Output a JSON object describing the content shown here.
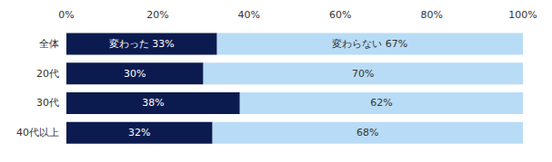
{
  "chart_data": {
    "type": "bar",
    "orientation": "horizontal",
    "stacked": true,
    "data_labels": true,
    "grid": false,
    "categories": [
      "全体",
      "20代",
      "30代",
      "40代以上"
    ],
    "series": [
      {
        "name": "変わった",
        "color": "#0c1b4f",
        "values": [
          33,
          30,
          38,
          32
        ],
        "value_labels": [
          "変わった 33%",
          "30%",
          "38%",
          "32%"
        ]
      },
      {
        "name": "変わらない",
        "color": "#b8dcf6",
        "values": [
          67,
          70,
          62,
          68
        ],
        "value_labels": [
          "変わらない 67%",
          "70%",
          "62%",
          "68%"
        ]
      }
    ],
    "xlim": [
      0,
      100
    ],
    "xticks": [
      {
        "value": 0,
        "label": "0%"
      },
      {
        "value": 20,
        "label": "20%"
      },
      {
        "value": 40,
        "label": "40%"
      },
      {
        "value": 60,
        "label": "60%"
      },
      {
        "value": 80,
        "label": "80%"
      },
      {
        "value": 100,
        "label": "100%"
      }
    ]
  }
}
